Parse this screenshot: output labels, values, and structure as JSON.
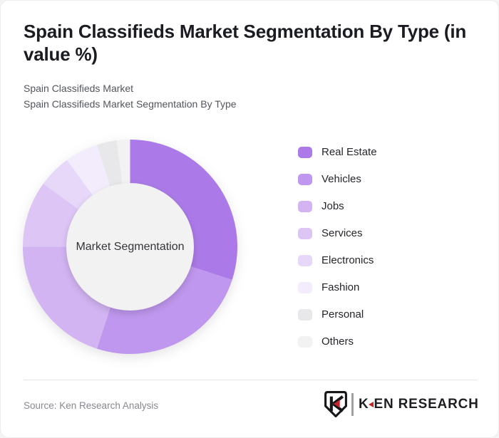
{
  "header": {
    "title": "Spain Classifieds Market Segmentation By Type (in value %)",
    "subtitle_line1": "Spain Classifieds Market",
    "subtitle_line2": "Spain Classifieds Market Segmentation By Type"
  },
  "chart_data": {
    "type": "pie",
    "style": "donut",
    "title": "Spain Classifieds Market Segmentation By Type (in value %)",
    "unit": "value %",
    "center_label": "Market Segmentation",
    "start_angle_deg": 0,
    "direction": "clockwise",
    "value_labels_shown": false,
    "categories": [
      "Real Estate",
      "Vehicles",
      "Jobs",
      "Services",
      "Electronics",
      "Fashion",
      "Personal",
      "Others"
    ],
    "values": [
      30,
      25,
      20,
      10,
      5,
      5,
      3,
      2
    ],
    "colors": [
      "#ab7ae8",
      "#bf97ee",
      "#d2b4f2",
      "#ddc6f6",
      "#e7d8f9",
      "#f3ecfc",
      "#e8e7ea",
      "#f2f2f3"
    ],
    "hole_color": "#f2f2f2",
    "legend_position": "right"
  },
  "footer": {
    "source": "Source: Ken Research Analysis",
    "logo": {
      "badge_letter": "K",
      "wordmark_k": "K",
      "wordmark_rest": "EN RESEARCH",
      "accent_red": "#c4242b",
      "ink": "#1d1e22"
    }
  }
}
